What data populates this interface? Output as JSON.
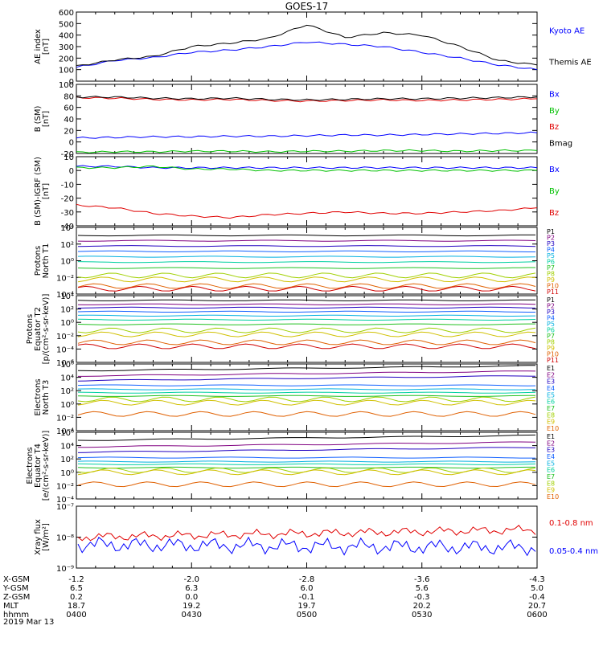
{
  "title": "GOES-17",
  "colors": {
    "black": "#000000",
    "blue": "#0000ff",
    "green": "#00c000",
    "red": "#e00000",
    "ch": [
      "#000000",
      "#800080",
      "#2000c0",
      "#1060ff",
      "#00b0e0",
      "#00d0a0",
      "#20c020",
      "#a0d000",
      "#d0c000",
      "#e06000",
      "#d00000"
    ]
  },
  "panels": [
    {
      "id": "ae",
      "ylabel": [
        "AE index",
        "[nT]"
      ],
      "yticks": [
        "600",
        "500",
        "400",
        "300",
        "200",
        "100",
        "0"
      ],
      "legend": [
        {
          "text": "Kyoto AE",
          "color": "blue"
        },
        {
          "text": "Themis AE",
          "color": "black"
        }
      ]
    },
    {
      "id": "b",
      "ylabel": [
        "B (SM)",
        "[nT]"
      ],
      "yticks": [
        "100",
        "80",
        "60",
        "40",
        "20",
        "0",
        "-20"
      ],
      "legend": [
        {
          "text": "Bx",
          "color": "blue"
        },
        {
          "text": "By",
          "color": "green"
        },
        {
          "text": "Bz",
          "color": "red"
        },
        {
          "text": "Bmag",
          "color": "black"
        }
      ]
    },
    {
      "id": "bi",
      "ylabel": [
        "B (SM)-IGRF (SM)",
        "[nT]"
      ],
      "yticks": [
        "10",
        "0",
        "-10",
        "-20",
        "-30",
        "-40"
      ],
      "legend": [
        {
          "text": "Bx",
          "color": "blue"
        },
        {
          "text": "By",
          "color": "green"
        },
        {
          "text": "Bz",
          "color": "red"
        }
      ]
    },
    {
      "id": "pn",
      "ylabel": [
        "Protons",
        "North T1"
      ],
      "yticks": [
        "10⁴",
        "10²",
        "10⁰",
        "10⁻²",
        "10⁻⁴"
      ],
      "legend": [
        {
          "text": "P1"
        },
        {
          "text": "P2"
        },
        {
          "text": "P3"
        },
        {
          "text": "P4"
        },
        {
          "text": "P5"
        },
        {
          "text": "P6"
        },
        {
          "text": "P7"
        },
        {
          "text": "P8"
        },
        {
          "text": "P9"
        },
        {
          "text": "P10"
        },
        {
          "text": "P11"
        }
      ]
    },
    {
      "id": "pe",
      "ylabel": [
        "Protons",
        "Equator T2",
        "[p/(cm²-s-sr-keV)]"
      ],
      "yticks": [
        "10⁴",
        "10²",
        "10⁰",
        "10⁻²",
        "10⁻⁴",
        "10⁻⁶"
      ],
      "legend": [
        {
          "text": "P1"
        },
        {
          "text": "P2"
        },
        {
          "text": "P3"
        },
        {
          "text": "P4"
        },
        {
          "text": "P5"
        },
        {
          "text": "P6"
        },
        {
          "text": "P7"
        },
        {
          "text": "P8"
        },
        {
          "text": "P9"
        },
        {
          "text": "P10"
        },
        {
          "text": "P11"
        }
      ]
    },
    {
      "id": "en",
      "ylabel": [
        "Electrons",
        "North T3"
      ],
      "yticks": [
        "10⁶",
        "10⁴",
        "10²",
        "10⁰",
        "10⁻²",
        "10⁻⁴"
      ],
      "legend": [
        {
          "text": "E1"
        },
        {
          "text": "E2"
        },
        {
          "text": "E3"
        },
        {
          "text": "E4"
        },
        {
          "text": "E5"
        },
        {
          "text": "E6"
        },
        {
          "text": "E7"
        },
        {
          "text": "E8"
        },
        {
          "text": "E9"
        },
        {
          "text": "E10"
        }
      ]
    },
    {
      "id": "ee",
      "ylabel": [
        "Electrons",
        "Equator T4",
        "[e/(cm²-s-sr-keV)]"
      ],
      "yticks": [
        "10⁶",
        "10⁴",
        "10²",
        "10⁰",
        "10⁻²",
        "10⁻⁴"
      ],
      "legend": [
        {
          "text": "E1"
        },
        {
          "text": "E2"
        },
        {
          "text": "E3"
        },
        {
          "text": "E4"
        },
        {
          "text": "E5"
        },
        {
          "text": "E6"
        },
        {
          "text": "E7"
        },
        {
          "text": "E8"
        },
        {
          "text": "E9"
        },
        {
          "text": "E10"
        }
      ]
    },
    {
      "id": "xr",
      "ylabel": [
        "Xray flux",
        "[W/m²]"
      ],
      "yticks": [
        "10⁻⁷",
        "10⁻⁸",
        "10⁻⁹"
      ],
      "legend": [
        {
          "text": "0.1-0.8 nm",
          "color": "red"
        },
        {
          "text": "0.05-0.4 nm",
          "color": "blue"
        }
      ]
    }
  ],
  "xaxis": {
    "row_labels": [
      "X-GSM",
      "Y-GSM",
      "Z-GSM",
      "MLT",
      "hhmm",
      "2019 Mar 13"
    ],
    "columns": [
      [
        "-1.2",
        "6.5",
        "0.2",
        "18.7",
        "0400"
      ],
      [
        "-2.0",
        "6.3",
        "0.0",
        "19.2",
        "0430"
      ],
      [
        "-2.8",
        "6.0",
        "-0.1",
        "19.7",
        "0500"
      ],
      [
        "-3.6",
        "5.6",
        "-0.3",
        "20.2",
        "0530"
      ],
      [
        "-4.3",
        "5.0",
        "-0.4",
        "20.7",
        "0600"
      ]
    ]
  },
  "chart_data": {
    "type": "line",
    "title": "GOES-17",
    "x": [
      "0400",
      "0410",
      "0420",
      "0430",
      "0440",
      "0450",
      "0500",
      "0510",
      "0520",
      "0530",
      "0540",
      "0550",
      "0600"
    ],
    "panels": [
      {
        "ylabel": "AE index [nT]",
        "ylim": [
          0,
          600
        ],
        "series": [
          {
            "name": "Kyoto AE",
            "color": "blue",
            "values": [
              120,
              180,
              205,
              250,
              270,
              300,
              340,
              320,
              300,
              250,
              200,
              140,
              100
            ]
          },
          {
            "name": "Themis AE",
            "color": "black",
            "values": [
              130,
              185,
              215,
              300,
              330,
              370,
              490,
              380,
              420,
              400,
              300,
              180,
              140
            ]
          }
        ]
      },
      {
        "ylabel": "B (SM) [nT]",
        "ylim": [
          -20,
          100
        ],
        "series": [
          {
            "name": "Bx",
            "color": "blue",
            "values": [
              7,
              8,
              9,
              9,
              10,
              10,
              11,
              12,
              12,
              13,
              14,
              15,
              16
            ]
          },
          {
            "name": "By",
            "color": "green",
            "values": [
              -18,
              -17,
              -17,
              -16,
              -16,
              -17,
              -16,
              -16,
              -15,
              -15,
              -16,
              -15,
              -15
            ]
          },
          {
            "name": "Bz",
            "color": "red",
            "values": [
              77,
              76,
              74,
              73,
              74,
              72,
              71,
              72,
              73,
              72,
              73,
              74,
              75
            ]
          },
          {
            "name": "Bmag",
            "color": "black",
            "values": [
              78,
              78,
              76,
              75,
              76,
              74,
              73,
              74,
              75,
              75,
              76,
              77,
              78
            ]
          }
        ]
      },
      {
        "ylabel": "B (SM)-IGRF (SM) [nT]",
        "ylim": [
          -40,
          10
        ],
        "series": [
          {
            "name": "Bx",
            "color": "blue",
            "values": [
              3,
              3,
              2,
              2,
              2,
              2,
              2,
              2,
              2,
              2,
              2,
              2,
              2
            ]
          },
          {
            "name": "By",
            "color": "green",
            "values": [
              2,
              2,
              3,
              1,
              1,
              0,
              0,
              0,
              0,
              0,
              0,
              0,
              0
            ]
          },
          {
            "name": "Bz",
            "color": "red",
            "values": [
              -25,
              -27,
              -31,
              -33,
              -34,
              -32,
              -31,
              -30,
              -31,
              -31,
              -30,
              -29,
              -27
            ]
          }
        ]
      }
    ]
  }
}
